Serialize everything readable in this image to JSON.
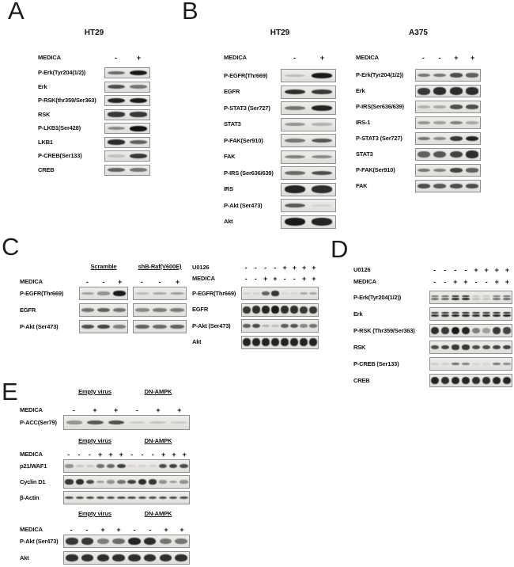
{
  "panels": {
    "A": {
      "letter": "A",
      "title": "HT29",
      "treatments": [
        {
          "name": "MEDICA",
          "signs": [
            [
              "-",
              "+"
            ]
          ]
        }
      ],
      "rows": [
        {
          "label": "P-Erk(Tyr204(1/2))",
          "bands": [
            [
              0.55,
              0.95
            ]
          ]
        },
        {
          "label": "Erk",
          "bands": [
            [
              0.7,
              0.5
            ]
          ]
        },
        {
          "label": "P-RSK(thr359/Ser363)",
          "bands": [
            [
              0.9,
              0.95
            ]
          ]
        },
        {
          "label": "RSK",
          "bands": [
            [
              0.8,
              0.8
            ]
          ]
        },
        {
          "label": "P-LKB1(Ser428)",
          "bands": [
            [
              0.4,
              1.0
            ]
          ]
        },
        {
          "label": "LKB1",
          "bands": [
            [
              0.85,
              0.6
            ]
          ]
        },
        {
          "label": "P-CREB(Ser133)",
          "bands": [
            [
              0.12,
              0.8
            ]
          ]
        },
        {
          "label": "CREB",
          "bands": [
            [
              0.6,
              0.5
            ]
          ]
        }
      ]
    },
    "B_HT29": {
      "letter": "B",
      "title": "HT29",
      "treatments": [
        {
          "name": "MEDICA",
          "signs": [
            [
              "-",
              "+"
            ]
          ]
        }
      ],
      "rows": [
        {
          "label": "P-EGFR(Thr669)",
          "bands": [
            [
              0.15,
              0.95
            ]
          ]
        },
        {
          "label": "EGFR",
          "bands": [
            [
              0.85,
              0.8
            ]
          ]
        },
        {
          "label": "P-STAT3 (Ser727)",
          "bands": [
            [
              0.5,
              0.9
            ]
          ]
        },
        {
          "label": "STAT3",
          "bands": [
            [
              0.35,
              0.2
            ]
          ]
        },
        {
          "label": "P-FAK(Ser910)",
          "bands": [
            [
              0.5,
              0.65
            ]
          ]
        },
        {
          "label": "FAK",
          "bands": [
            [
              0.45,
              0.4
            ]
          ]
        },
        {
          "label": "P-IRS (Ser636/639)",
          "bands": [
            [
              0.55,
              0.7
            ]
          ]
        },
        {
          "label": "IRS",
          "bands": [
            [
              0.9,
              0.85
            ]
          ],
          "thick": true
        },
        {
          "label": "P-Akt (Ser473)",
          "bands": [
            [
              0.65,
              0.04
            ]
          ]
        },
        {
          "label": "Akt",
          "bands": [
            [
              0.95,
              0.9
            ]
          ],
          "thick": true
        }
      ]
    },
    "B_A375": {
      "title": "A375",
      "treatments": [
        {
          "name": "MEDICA",
          "signs": [
            [
              "-",
              "-",
              "+",
              "+"
            ]
          ]
        }
      ],
      "rows": [
        {
          "label": "P-Erk(Tyr204(1/2))",
          "bands": [
            [
              0.5,
              0.5,
              0.7,
              0.6
            ]
          ]
        },
        {
          "label": "Erk",
          "bands": [
            [
              0.8,
              0.85,
              0.85,
              0.85
            ]
          ],
          "thick": true
        },
        {
          "label": "P-IRS(Ser636/639)",
          "bands": [
            [
              0.2,
              0.25,
              0.7,
              0.7
            ]
          ]
        },
        {
          "label": "IRS-1",
          "bands": [
            [
              0.35,
              0.3,
              0.45,
              0.25
            ]
          ]
        },
        {
          "label": "P-STAT3 (Ser727)",
          "bands": [
            [
              0.5,
              0.4,
              0.8,
              0.9
            ]
          ]
        },
        {
          "label": "STAT3",
          "bands": [
            [
              0.6,
              0.65,
              0.75,
              0.85
            ]
          ],
          "thick": true
        },
        {
          "label": "P-FAK(Ser910)",
          "bands": [
            [
              0.5,
              0.45,
              0.75,
              0.6
            ]
          ]
        },
        {
          "label": "FAK",
          "bands": [
            [
              0.7,
              0.65,
              0.7,
              0.7
            ]
          ]
        }
      ]
    },
    "C_left": {
      "letter": "C",
      "group_headers": [
        "Scramble",
        "shB-Raf(V600E)"
      ],
      "treatments": [
        {
          "name": "MEDICA",
          "signs": [
            [
              "-",
              "-",
              "+"
            ],
            [
              "-",
              "-",
              "+"
            ]
          ]
        }
      ],
      "rows": [
        {
          "label": "P-EGFR(Thr669)",
          "bands": [
            [
              0.3,
              0.35,
              0.95
            ],
            [
              0.15,
              0.25,
              0.3
            ]
          ]
        },
        {
          "label": "EGFR",
          "bands": [
            [
              0.5,
              0.6,
              0.5
            ],
            [
              0.4,
              0.45,
              0.45
            ]
          ]
        },
        {
          "label": "P-Akt (Ser473)",
          "bands": [
            [
              0.7,
              0.75,
              0.45
            ],
            [
              0.6,
              0.55,
              0.6
            ]
          ]
        }
      ]
    },
    "C_right": {
      "treatments": [
        {
          "name": "U0126",
          "signs": [
            [
              "-",
              "-",
              "-",
              "-",
              "+",
              "+",
              "+",
              "+"
            ]
          ]
        },
        {
          "name": "MEDICA",
          "signs": [
            [
              "-",
              "-",
              "+",
              "+",
              "-",
              "-",
              "+",
              "+"
            ]
          ]
        }
      ],
      "rows": [
        {
          "label": "P-EGFR(Thr669)",
          "bands": [
            [
              0.04,
              0.04,
              0.6,
              0.8,
              0.02,
              0.02,
              0.25,
              0.25
            ]
          ]
        },
        {
          "label": "EGFR",
          "bands": [
            [
              0.8,
              0.85,
              0.9,
              0.95,
              0.85,
              0.85,
              0.8,
              0.8
            ]
          ],
          "thick": true
        },
        {
          "label": "P-Akt (Ser473)",
          "bands": [
            [
              0.6,
              0.7,
              0.2,
              0.15,
              0.6,
              0.65,
              0.4,
              0.5
            ]
          ]
        },
        {
          "label": "Akt",
          "bands": [
            [
              0.9,
              0.9,
              0.9,
              0.9,
              0.9,
              0.9,
              0.9,
              0.9
            ]
          ],
          "thick": true
        }
      ]
    },
    "D": {
      "letter": "D",
      "treatments": [
        {
          "name": "U0126",
          "signs": [
            [
              "-",
              "-",
              "-",
              "-",
              "+",
              "+",
              "+",
              "+"
            ]
          ]
        },
        {
          "name": "MEDICA",
          "signs": [
            [
              "-",
              "-",
              "+",
              "+",
              "-",
              "-",
              "+",
              "+"
            ]
          ]
        }
      ],
      "rows": [
        {
          "label": "P-Erk(Tyr204(1/2))",
          "bands": [
            [
              0.5,
              0.55,
              0.85,
              0.85,
              0.12,
              0.1,
              0.5,
              0.55
            ]
          ],
          "double": true
        },
        {
          "label": "Erk",
          "bands": [
            [
              0.8,
              0.85,
              0.9,
              0.9,
              0.85,
              0.85,
              0.9,
              0.9
            ]
          ],
          "double": true
        },
        {
          "label": "P-RSK (Thr359/Ser363)",
          "bands": [
            [
              0.85,
              0.8,
              0.95,
              0.9,
              0.45,
              0.3,
              0.8,
              0.75
            ]
          ],
          "thick": true
        },
        {
          "label": "RSK",
          "bands": [
            [
              0.7,
              0.75,
              0.8,
              0.8,
              0.7,
              0.7,
              0.75,
              0.75
            ]
          ]
        },
        {
          "label": "P-CREB (Ser133)",
          "bands": [
            [
              0.05,
              0.05,
              0.55,
              0.45,
              0.02,
              0.02,
              0.5,
              0.4
            ]
          ],
          "thin": true
        },
        {
          "label": "CREB",
          "bands": [
            [
              0.9,
              0.85,
              0.9,
              0.9,
              0.85,
              0.85,
              0.9,
              0.9
            ]
          ],
          "thick": true
        }
      ]
    },
    "E1": {
      "letter": "E",
      "group_headers": [
        "Empty virus",
        "DN-AMPK"
      ],
      "treatments": [
        {
          "name": "MEDICA",
          "signs": [
            [
              "-",
              "+",
              "+",
              "-",
              "+",
              "+"
            ]
          ]
        }
      ],
      "rows": [
        {
          "label": "P-ACC(Ser79)",
          "bands": [
            [
              0.35,
              0.65,
              0.7,
              0.08,
              0.12,
              0.08
            ]
          ]
        }
      ]
    },
    "E2": {
      "group_headers": [
        "Empty virus",
        "DN-AMPK"
      ],
      "treatments": [
        {
          "name": "MEDICA",
          "signs": [
            [
              "-",
              "-",
              "-",
              "+",
              "+",
              "+",
              "-",
              "-",
              "-",
              "+",
              "+",
              "+"
            ]
          ]
        }
      ],
      "rows": [
        {
          "label": "p21/WAF1",
          "bands": [
            [
              0.35,
              0.1,
              0.08,
              0.5,
              0.55,
              0.75,
              0.04,
              0.04,
              0.04,
              0.7,
              0.75,
              0.7
            ]
          ]
        },
        {
          "label": "Cyclin D1",
          "bands": [
            [
              0.8,
              0.85,
              0.7,
              0.3,
              0.35,
              0.5,
              0.75,
              0.85,
              0.8,
              0.35,
              0.3,
              0.35
            ]
          ]
        },
        {
          "label": "β-Actin",
          "bands": [
            [
              0.7,
              0.7,
              0.7,
              0.7,
              0.7,
              0.7,
              0.7,
              0.7,
              0.7,
              0.7,
              0.7,
              0.7
            ]
          ],
          "thin": true
        }
      ]
    },
    "E3": {
      "group_headers": [
        "Empty virus",
        "DN-AMPK"
      ],
      "treatments": [
        {
          "name": "MEDICA",
          "signs": [
            [
              "-",
              "-",
              "+",
              "+",
              "-",
              "-",
              "+",
              "+"
            ]
          ]
        }
      ],
      "rows": [
        {
          "label": "P-Akt (Ser473)",
          "bands": [
            [
              0.8,
              0.8,
              0.45,
              0.55,
              0.9,
              0.85,
              0.5,
              0.5
            ]
          ],
          "thick": true
        },
        {
          "label": "Akt",
          "bands": [
            [
              0.85,
              0.85,
              0.85,
              0.85,
              0.85,
              0.85,
              0.85,
              0.85
            ]
          ],
          "thick": true
        }
      ]
    }
  }
}
